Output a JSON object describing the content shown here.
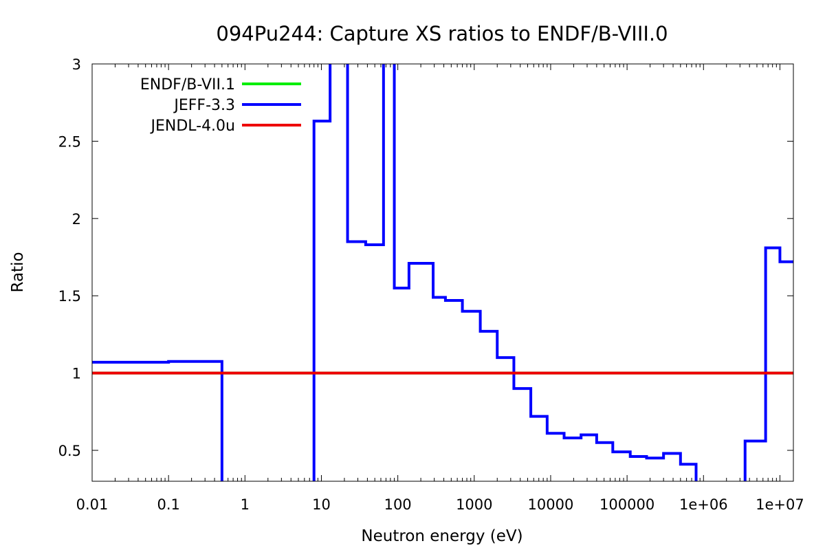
{
  "chart_data": {
    "type": "line",
    "title": "094Pu244: Capture XS ratios to ENDF/B-VIII.0",
    "xlabel": "Neutron energy (eV)",
    "ylabel": "Ratio",
    "x_scale": "log",
    "xlim": [
      0.01,
      15000000
    ],
    "ylim": [
      0.3,
      3
    ],
    "x_ticks": [
      {
        "value": 0.01,
        "label": "0.01"
      },
      {
        "value": 0.1,
        "label": "0.1"
      },
      {
        "value": 1,
        "label": "1"
      },
      {
        "value": 10,
        "label": "10"
      },
      {
        "value": 100,
        "label": "100"
      },
      {
        "value": 1000,
        "label": "1000"
      },
      {
        "value": 10000,
        "label": "10000"
      },
      {
        "value": 100000,
        "label": "100000"
      },
      {
        "value": 1000000,
        "label": "1e+06"
      },
      {
        "value": 10000000,
        "label": "1e+07"
      }
    ],
    "y_ticks": [
      {
        "value": 0.5,
        "label": "0.5"
      },
      {
        "value": 1,
        "label": "1"
      },
      {
        "value": 1.5,
        "label": "1.5"
      },
      {
        "value": 2,
        "label": "2"
      },
      {
        "value": 2.5,
        "label": "2.5"
      },
      {
        "value": 3,
        "label": "3"
      }
    ],
    "legend_position": "top-left",
    "series": [
      {
        "name": "ENDF/B-VII.1",
        "color": "#00ee00",
        "style": "step",
        "x": [
          0.01,
          15000000
        ],
        "y": [
          1,
          1
        ]
      },
      {
        "name": "JEFF-3.3",
        "color": "#0000ff",
        "style": "step",
        "x": [
          0.01,
          0.1,
          0.5,
          8,
          13,
          22,
          38,
          65,
          90,
          140,
          290,
          420,
          700,
          1200,
          2000,
          3300,
          5500,
          9000,
          15000,
          25000,
          40000,
          65000,
          110000,
          180000,
          300000,
          500000,
          800000,
          3500000,
          6500000,
          10000000,
          15000000
        ],
        "y": [
          1.07,
          1.075,
          0.0,
          2.63,
          5.0,
          1.85,
          1.83,
          5.0,
          1.55,
          1.71,
          1.49,
          1.47,
          1.4,
          1.27,
          1.1,
          0.9,
          0.72,
          0.61,
          0.58,
          0.6,
          0.55,
          0.49,
          0.46,
          0.45,
          0.48,
          0.41,
          0.0,
          0.56,
          1.81,
          1.72,
          1.72
        ]
      },
      {
        "name": "JENDL-4.0u",
        "color": "#ee0000",
        "style": "step",
        "x": [
          0.01,
          15000000
        ],
        "y": [
          1,
          1
        ]
      }
    ]
  }
}
